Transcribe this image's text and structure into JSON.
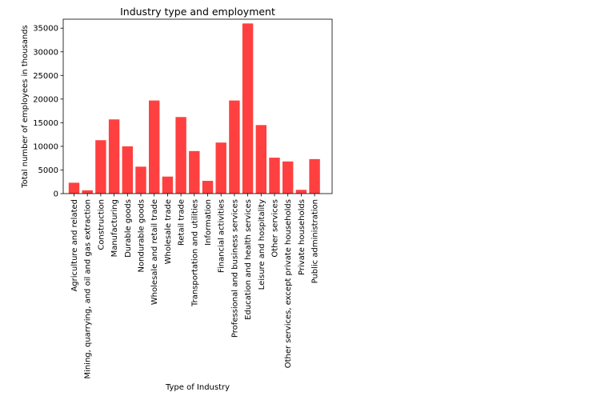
{
  "chart_data": {
    "type": "bar",
    "title": "Industry type and employment",
    "xlabel": "Type of Industry",
    "ylabel": "Total number of employees in thousands",
    "categories": [
      "Agriculture and related",
      "Mining, quarrying, and oil and gas extraction",
      "Construction",
      "Manufacturing",
      "Durable goods",
      "Nondurable goods",
      "Wholesale and retail trade",
      "Wholesale trade",
      "Retail trade",
      "Transportation and utilities",
      "Information",
      "Financial activities",
      "Professional and business services",
      "Education and health services",
      "Leisure and hospitality",
      "Other services",
      "Other services, except private households",
      "Private households",
      "Public administration"
    ],
    "values": [
      2300,
      700,
      11300,
      15700,
      10000,
      5700,
      19700,
      3600,
      16200,
      9000,
      2700,
      10800,
      19700,
      36000,
      14500,
      7600,
      6800,
      800,
      7300
    ],
    "ylim": [
      0,
      36900
    ],
    "yticks": [
      0,
      5000,
      10000,
      15000,
      20000,
      25000,
      30000,
      35000
    ],
    "bar_color": "#ff4040",
    "grid": false,
    "legend": "none"
  }
}
